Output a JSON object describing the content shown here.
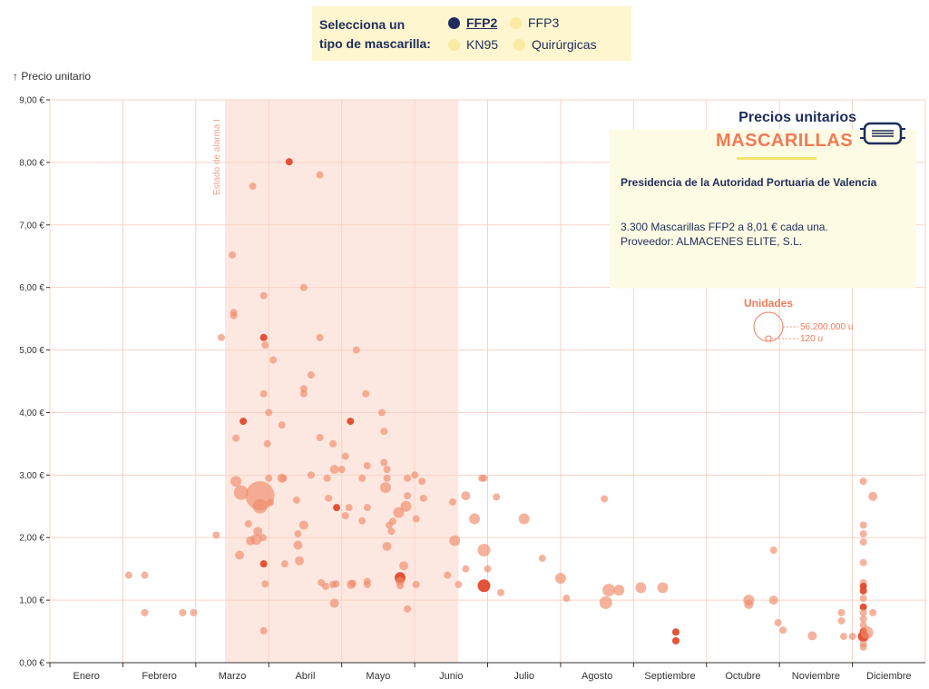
{
  "selector": {
    "title_line1": "Selecciona un",
    "title_line2": "tipo de mascarilla:",
    "options": [
      {
        "label": "FFP2",
        "active": true
      },
      {
        "label": "FFP3",
        "active": false
      },
      {
        "label": "KN95",
        "active": false
      },
      {
        "label": "Quirúrgicas",
        "active": false
      }
    ]
  },
  "info": {
    "heading": "Precios unitarios",
    "subheading": "MASCARILLAS",
    "entity": "Presidencia de la Autoridad Portuaria de Valencia",
    "detail_line1": "3.300 Mascarillas FFP2 a 8,01 € cada una.",
    "detail_line2": "Proveedor: ALMACENES ELITE, S.L.",
    "mask_icon": "mask-icon"
  },
  "legend": {
    "title": "Unidades",
    "max_label": "56.200.000 u",
    "min_label": "120 u"
  },
  "colors": {
    "point": "#f08a6a",
    "point_dark": "#e04a2c",
    "band": "#fde8e1",
    "grid": "#f8d3c6",
    "accent": "#f07a58",
    "navy": "#1f2d5c"
  },
  "chart_data": {
    "type": "scatter",
    "title": "",
    "ylabel": "↑ Precio unitario",
    "xlabel": "",
    "ylim": [
      0,
      9
    ],
    "yticks": [
      "0,00 €",
      "1,00 €",
      "2,00 €",
      "3,00 €",
      "4,00 €",
      "5,00 €",
      "6,00 €",
      "7,00 €",
      "8,00 €",
      "9,00 €"
    ],
    "months": [
      "Enero",
      "Febrero",
      "Marzo",
      "Abril",
      "Mayo",
      "Junio",
      "Julio",
      "Agosto",
      "Septiembre",
      "Octubre",
      "Noviembre",
      "Diciembre"
    ],
    "band": {
      "label": "Estado de alarma I",
      "start_month": 2.4,
      "end_month": 5.6
    },
    "points": [
      [
        1.08,
        1.4,
        4,
        0
      ],
      [
        1.3,
        1.4,
        4,
        0
      ],
      [
        1.3,
        0.8,
        4,
        0
      ],
      [
        1.82,
        0.8,
        4,
        0
      ],
      [
        1.97,
        0.8,
        4,
        0
      ],
      [
        2.28,
        2.04,
        4,
        0
      ],
      [
        2.35,
        5.2,
        4,
        0
      ],
      [
        2.5,
        6.52,
        4,
        0
      ],
      [
        2.52,
        5.6,
        4,
        0
      ],
      [
        2.52,
        5.55,
        4,
        0
      ],
      [
        2.55,
        3.59,
        4,
        0
      ],
      [
        2.55,
        2.9,
        6,
        0
      ],
      [
        2.62,
        2.72,
        8,
        0
      ],
      [
        2.6,
        1.72,
        5,
        0
      ],
      [
        2.65,
        3.86,
        4,
        1
      ],
      [
        2.72,
        2.22,
        4,
        0
      ],
      [
        2.75,
        1.95,
        5,
        0
      ],
      [
        2.78,
        7.62,
        4,
        0
      ],
      [
        2.88,
        2.67,
        16,
        0
      ],
      [
        2.88,
        2.5,
        8,
        0
      ],
      [
        2.85,
        2.1,
        5,
        0
      ],
      [
        2.83,
        1.97,
        6,
        0
      ],
      [
        2.93,
        5.87,
        4,
        0
      ],
      [
        2.93,
        5.2,
        4,
        1
      ],
      [
        2.95,
        5.08,
        4,
        0
      ],
      [
        2.93,
        4.3,
        4,
        0
      ],
      [
        2.92,
        2.0,
        4,
        0
      ],
      [
        2.93,
        1.58,
        4,
        1
      ],
      [
        2.95,
        1.26,
        4,
        0
      ],
      [
        2.93,
        0.51,
        4,
        0
      ],
      [
        2.98,
        3.5,
        4,
        0
      ],
      [
        3.0,
        4.0,
        4,
        0
      ],
      [
        3.0,
        2.95,
        4,
        0
      ],
      [
        3.02,
        2.56,
        4,
        0
      ],
      [
        3.06,
        4.84,
        4,
        0
      ],
      [
        3.18,
        3.8,
        4,
        0
      ],
      [
        3.18,
        2.95,
        5,
        0
      ],
      [
        3.2,
        2.95,
        4,
        0
      ],
      [
        3.22,
        1.58,
        4,
        0
      ],
      [
        3.28,
        8.01,
        4,
        1
      ],
      [
        3.38,
        2.6,
        4,
        0
      ],
      [
        3.4,
        1.88,
        5,
        0
      ],
      [
        3.42,
        1.63,
        5,
        0
      ],
      [
        3.4,
        2.06,
        4,
        0
      ],
      [
        3.48,
        2.2,
        5,
        0
      ],
      [
        3.48,
        4.38,
        4,
        0
      ],
      [
        3.48,
        4.3,
        4,
        0
      ],
      [
        3.48,
        6.0,
        4,
        0
      ],
      [
        3.58,
        4.6,
        4,
        0
      ],
      [
        3.58,
        3.0,
        4,
        0
      ],
      [
        3.7,
        7.8,
        4,
        0
      ],
      [
        3.7,
        5.2,
        4,
        0
      ],
      [
        3.7,
        3.6,
        4,
        0
      ],
      [
        3.72,
        1.28,
        4,
        0
      ],
      [
        3.78,
        1.22,
        4,
        0
      ],
      [
        3.8,
        2.95,
        4,
        0
      ],
      [
        3.82,
        2.63,
        4,
        0
      ],
      [
        3.88,
        3.5,
        4,
        0
      ],
      [
        3.9,
        3.09,
        5,
        0
      ],
      [
        3.93,
        2.48,
        4,
        1
      ],
      [
        3.92,
        1.26,
        4,
        0
      ],
      [
        3.88,
        1.25,
        4,
        0
      ],
      [
        3.9,
        0.95,
        5,
        0
      ],
      [
        4.0,
        3.09,
        4,
        0
      ],
      [
        4.05,
        3.3,
        4,
        0
      ],
      [
        4.05,
        2.35,
        4,
        0
      ],
      [
        4.1,
        2.48,
        4,
        0
      ],
      [
        4.12,
        3.86,
        4,
        1
      ],
      [
        4.13,
        1.25,
        5,
        0
      ],
      [
        4.15,
        1.27,
        4,
        0
      ],
      [
        4.2,
        5.0,
        4,
        0
      ],
      [
        4.28,
        2.95,
        4,
        0
      ],
      [
        4.28,
        2.27,
        4,
        0
      ],
      [
        4.33,
        4.3,
        4,
        0
      ],
      [
        4.35,
        3.15,
        4,
        0
      ],
      [
        4.35,
        2.48,
        4,
        0
      ],
      [
        4.35,
        1.3,
        4,
        0
      ],
      [
        4.35,
        1.25,
        4,
        0
      ],
      [
        4.55,
        4.0,
        4,
        0
      ],
      [
        4.58,
        3.7,
        4,
        0
      ],
      [
        4.58,
        3.2,
        4,
        0
      ],
      [
        4.6,
        2.8,
        6,
        0
      ],
      [
        4.62,
        3.09,
        4,
        0
      ],
      [
        4.62,
        2.95,
        4,
        0
      ],
      [
        4.65,
        2.2,
        4,
        0
      ],
      [
        4.62,
        1.86,
        5,
        0
      ],
      [
        4.68,
        2.1,
        4,
        0
      ],
      [
        4.7,
        2.26,
        4,
        0
      ],
      [
        4.78,
        2.4,
        6,
        0
      ],
      [
        4.8,
        1.36,
        6,
        1
      ],
      [
        4.8,
        1.3,
        5,
        0
      ],
      [
        4.8,
        1.23,
        4,
        0
      ],
      [
        4.85,
        1.55,
        5,
        0
      ],
      [
        4.88,
        2.5,
        6,
        0
      ],
      [
        4.9,
        2.67,
        4,
        0
      ],
      [
        4.9,
        2.95,
        4,
        0
      ],
      [
        4.9,
        0.86,
        4,
        0
      ],
      [
        5.0,
        3.0,
        4,
        0
      ],
      [
        5.02,
        2.3,
        4,
        0
      ],
      [
        5.02,
        1.25,
        4,
        0
      ],
      [
        5.1,
        2.9,
        4,
        0
      ],
      [
        5.12,
        2.63,
        4,
        0
      ],
      [
        5.45,
        1.4,
        4,
        0
      ],
      [
        5.52,
        2.57,
        4,
        0
      ],
      [
        5.55,
        1.95,
        6,
        0
      ],
      [
        5.6,
        1.25,
        4,
        0
      ],
      [
        5.7,
        2.67,
        5,
        0
      ],
      [
        5.7,
        1.5,
        4,
        0
      ],
      [
        5.82,
        2.3,
        6,
        0
      ],
      [
        5.92,
        2.95,
        4,
        0
      ],
      [
        5.95,
        2.95,
        4,
        0
      ],
      [
        5.95,
        1.8,
        7,
        0
      ],
      [
        5.95,
        1.23,
        7,
        1
      ],
      [
        6.0,
        1.5,
        4,
        0
      ],
      [
        6.12,
        2.65,
        4,
        0
      ],
      [
        6.18,
        1.12,
        4,
        0
      ],
      [
        6.5,
        2.3,
        6,
        0
      ],
      [
        6.75,
        1.67,
        4,
        0
      ],
      [
        7.0,
        1.35,
        6,
        0
      ],
      [
        7.08,
        1.03,
        4,
        0
      ],
      [
        7.6,
        2.62,
        4,
        0
      ],
      [
        7.62,
        0.96,
        7,
        0
      ],
      [
        7.66,
        1.16,
        7,
        0
      ],
      [
        7.8,
        1.16,
        6,
        0
      ],
      [
        8.1,
        1.2,
        6,
        0
      ],
      [
        8.4,
        1.2,
        6,
        0
      ],
      [
        8.58,
        0.49,
        4,
        1
      ],
      [
        8.58,
        0.35,
        4,
        1
      ],
      [
        9.58,
        1.0,
        6,
        0
      ],
      [
        9.58,
        0.93,
        5,
        0
      ],
      [
        9.92,
        1.0,
        5,
        0
      ],
      [
        9.92,
        1.8,
        4,
        0
      ],
      [
        9.98,
        0.64,
        4,
        0
      ],
      [
        10.05,
        0.52,
        4,
        0
      ],
      [
        10.45,
        0.43,
        5,
        0
      ],
      [
        10.85,
        0.8,
        4,
        0
      ],
      [
        10.85,
        0.67,
        4,
        0
      ],
      [
        10.88,
        0.42,
        4,
        0
      ],
      [
        11.0,
        0.42,
        4,
        0
      ],
      [
        11.15,
        2.9,
        4,
        0
      ],
      [
        11.15,
        2.2,
        4,
        0
      ],
      [
        11.15,
        2.06,
        4,
        0
      ],
      [
        11.15,
        1.93,
        4,
        0
      ],
      [
        11.15,
        1.6,
        4,
        0
      ],
      [
        11.15,
        1.28,
        4,
        0
      ],
      [
        11.15,
        1.22,
        4,
        1
      ],
      [
        11.15,
        1.15,
        4,
        1
      ],
      [
        11.15,
        1.03,
        4,
        0
      ],
      [
        11.15,
        0.89,
        4,
        1
      ],
      [
        11.15,
        0.8,
        4,
        0
      ],
      [
        11.15,
        0.7,
        4,
        0
      ],
      [
        11.15,
        0.6,
        4,
        0
      ],
      [
        11.15,
        0.5,
        4,
        1
      ],
      [
        11.15,
        0.42,
        6,
        1
      ],
      [
        11.15,
        0.3,
        4,
        0
      ],
      [
        11.15,
        0.25,
        4,
        0
      ],
      [
        11.2,
        0.48,
        7,
        0
      ],
      [
        11.28,
        2.66,
        5,
        0
      ],
      [
        11.28,
        0.8,
        4,
        0
      ]
    ]
  }
}
